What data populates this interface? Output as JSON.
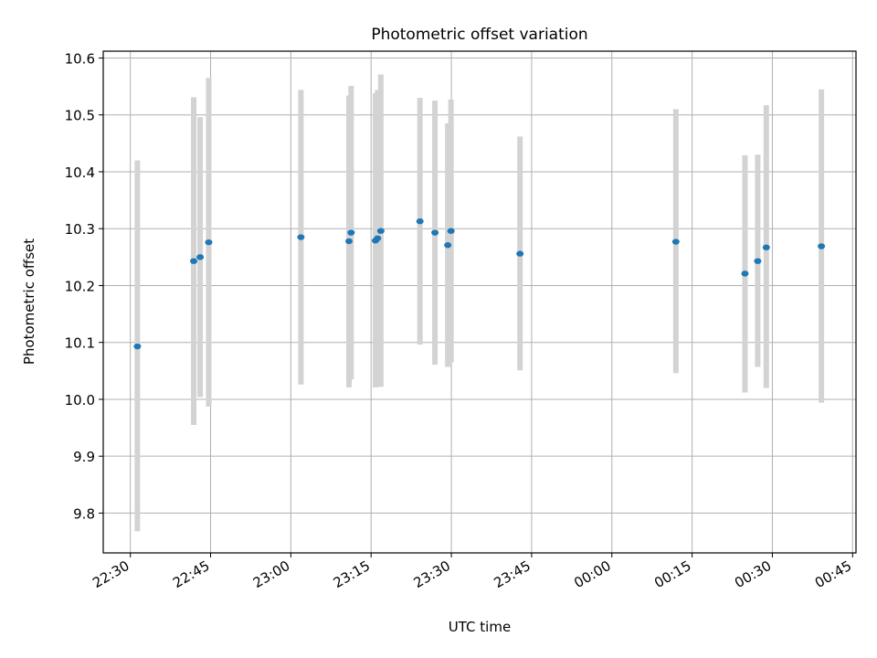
{
  "chart_data": {
    "type": "scatter",
    "title": "Photometric offset variation",
    "xlabel": "UTC time",
    "ylabel": "Photometric offset",
    "x_ticks": [
      "22:30",
      "22:45",
      "23:00",
      "23:15",
      "23:30",
      "23:45",
      "00:00",
      "00:15",
      "00:30",
      "00:45"
    ],
    "y_ticks": [
      "9.8",
      "9.9",
      "10.0",
      "10.1",
      "10.2",
      "10.3",
      "10.4",
      "10.5",
      "10.6"
    ],
    "xlim": [
      "22:24:56",
      "00:45:38"
    ],
    "ylim": [
      9.73,
      10.612
    ],
    "grid": true,
    "colors": {
      "marker": "#1f77b4",
      "errorbar": "#d3d3d3",
      "grid": "#b0b0b0"
    },
    "points": [
      {
        "t": "22:31:19",
        "y": 10.093,
        "ylo": 9.768,
        "yhi": 10.42
      },
      {
        "t": "22:41:51",
        "y": 10.243,
        "ylo": 9.955,
        "yhi": 10.531
      },
      {
        "t": "22:43:03",
        "y": 10.25,
        "ylo": 10.004,
        "yhi": 10.496
      },
      {
        "t": "22:44:39",
        "y": 10.276,
        "ylo": 9.987,
        "yhi": 10.565
      },
      {
        "t": "23:01:53",
        "y": 10.285,
        "ylo": 10.026,
        "yhi": 10.544
      },
      {
        "t": "23:10:52",
        "y": 10.278,
        "ylo": 10.021,
        "yhi": 10.534
      },
      {
        "t": "23:11:16",
        "y": 10.293,
        "ylo": 10.035,
        "yhi": 10.551
      },
      {
        "t": "23:15:49",
        "y": 10.279,
        "ylo": 10.021,
        "yhi": 10.538
      },
      {
        "t": "23:16:13",
        "y": 10.283,
        "ylo": 10.022,
        "yhi": 10.544
      },
      {
        "t": "23:16:49",
        "y": 10.296,
        "ylo": 10.022,
        "yhi": 10.571
      },
      {
        "t": "23:24:08",
        "y": 10.313,
        "ylo": 10.096,
        "yhi": 10.53
      },
      {
        "t": "23:26:56",
        "y": 10.293,
        "ylo": 10.061,
        "yhi": 10.525
      },
      {
        "t": "23:29:20",
        "y": 10.271,
        "ylo": 10.057,
        "yhi": 10.485
      },
      {
        "t": "23:29:56",
        "y": 10.296,
        "ylo": 10.065,
        "yhi": 10.527
      },
      {
        "t": "23:42:50",
        "y": 10.256,
        "ylo": 10.051,
        "yhi": 10.462
      },
      {
        "t": "00:11:58",
        "y": 10.277,
        "ylo": 10.046,
        "yhi": 10.51
      },
      {
        "t": "00:24:53",
        "y": 10.221,
        "ylo": 10.012,
        "yhi": 10.429
      },
      {
        "t": "00:27:16",
        "y": 10.243,
        "ylo": 10.057,
        "yhi": 10.43
      },
      {
        "t": "00:28:52",
        "y": 10.267,
        "ylo": 10.02,
        "yhi": 10.517
      },
      {
        "t": "00:39:10",
        "y": 10.269,
        "ylo": 9.994,
        "yhi": 10.545
      }
    ]
  }
}
